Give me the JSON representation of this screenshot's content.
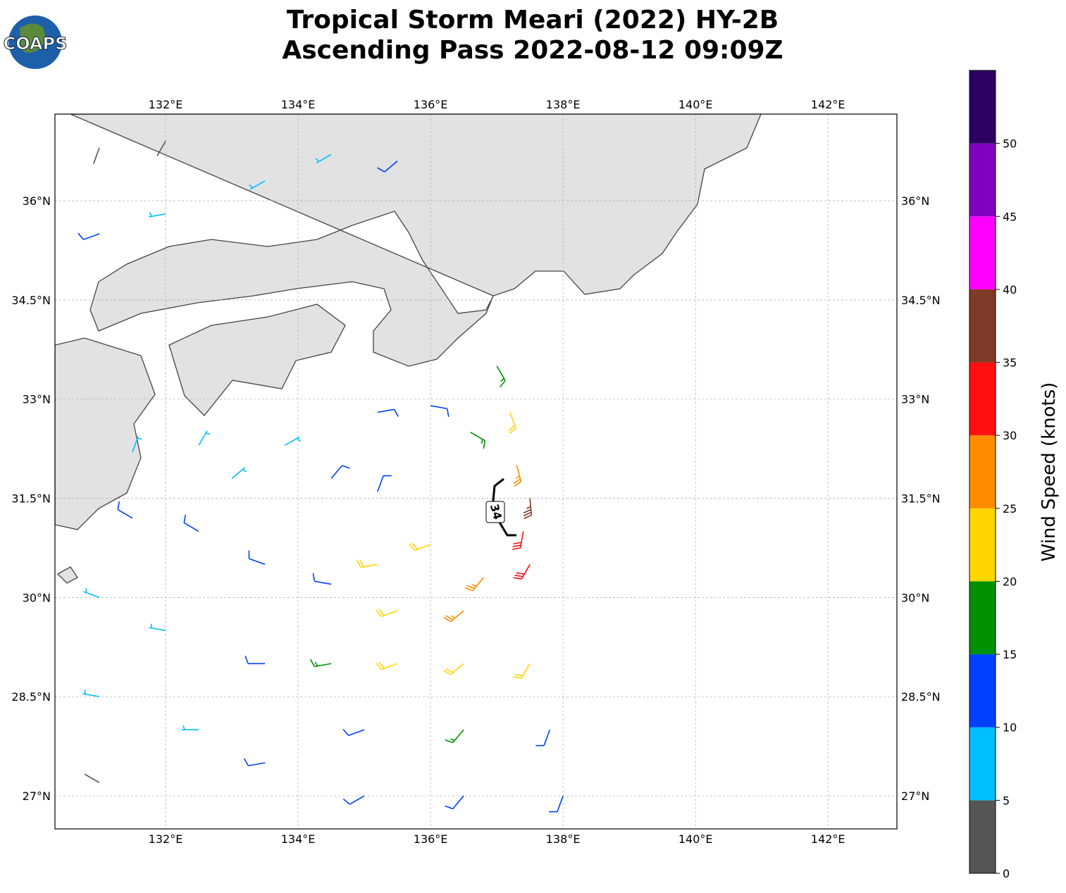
{
  "title": [
    "Tropical Storm Meari (2022) HY-2B",
    "Ascending Pass 2022-08-12 09:09Z"
  ],
  "logo": "COAPS",
  "map": {
    "xlim": [
      130.33,
      143.04
    ],
    "ylim": [
      26.5,
      37.31
    ],
    "xticks": [
      {
        "value": 132,
        "label": "132°E"
      },
      {
        "value": 134,
        "label": "134°E"
      },
      {
        "value": 136,
        "label": "136°E"
      },
      {
        "value": 138,
        "label": "138°E"
      },
      {
        "value": 140,
        "label": "140°E"
      },
      {
        "value": 142,
        "label": "142°E"
      }
    ],
    "yticks": [
      {
        "value": 27,
        "label": "27°N"
      },
      {
        "value": 28.5,
        "label": "28.5°N"
      },
      {
        "value": 30,
        "label": "30°N"
      },
      {
        "value": 31.5,
        "label": "31.5°N"
      },
      {
        "value": 33,
        "label": "33°N"
      },
      {
        "value": 34.5,
        "label": "34.5°N"
      },
      {
        "value": 36,
        "label": "36°N"
      }
    ],
    "grid": true,
    "contour_label": "34",
    "barbs": {
      "lon": [
        137.5,
        137.4,
        137.3,
        137.2,
        137.0,
        136.0,
        135.2,
        136.6,
        135.2,
        134.5,
        133.8,
        133.0,
        136.0,
        135.2,
        136.8,
        137.5,
        136.5,
        135.5,
        134.5,
        133.5,
        132.5,
        131.5,
        131.0,
        132.0,
        133.5,
        134.5,
        135.5,
        136.5,
        137.5,
        137.8,
        136.5,
        135.0,
        133.5,
        132.5,
        131.0,
        135.0,
        136.5,
        138.0,
        131.0,
        131.0,
        132.0,
        133.5,
        134.5,
        135.5,
        131.0,
        132.0,
        131.5,
        132.5
      ],
      "lat": [
        31.5,
        31.0,
        32.0,
        32.8,
        33.5,
        32.9,
        32.8,
        32.5,
        31.6,
        31.8,
        32.3,
        31.8,
        30.8,
        30.5,
        30.3,
        30.5,
        29.8,
        29.8,
        30.2,
        30.5,
        31.0,
        31.2,
        30.0,
        29.5,
        29.0,
        29.0,
        29.0,
        29.0,
        29.0,
        28.0,
        28.0,
        28.0,
        27.5,
        28.0,
        28.5,
        27.0,
        27.0,
        27.0,
        27.2,
        35.5,
        35.8,
        36.3,
        36.7,
        36.6,
        36.8,
        36.9,
        32.2,
        32.3
      ],
      "speed": [
        37,
        33,
        28,
        22,
        18,
        12,
        10,
        17,
        12,
        10,
        8,
        7,
        22,
        20,
        27,
        30,
        26,
        22,
        14,
        11,
        12,
        10,
        7,
        8,
        12,
        15,
        20,
        22,
        20,
        14,
        17,
        13,
        12,
        8,
        8,
        12,
        12,
        10,
        4,
        12,
        8,
        9,
        8,
        12,
        3,
        4,
        8,
        8
      ],
      "direction": [
        175,
        190,
        165,
        160,
        150,
        100,
        80,
        120,
        20,
        40,
        60,
        50,
        250,
        260,
        220,
        210,
        230,
        250,
        280,
        290,
        300,
        300,
        290,
        280,
        270,
        260,
        250,
        230,
        210,
        200,
        220,
        250,
        260,
        270,
        280,
        240,
        220,
        200,
        300,
        250,
        260,
        240,
        240,
        230,
        200,
        210,
        20,
        30
      ]
    }
  },
  "colorbar": {
    "label": "Wind Speed (knots)",
    "bounds": [
      0,
      5,
      10,
      15,
      20,
      25,
      30,
      35,
      40,
      45,
      50,
      55
    ],
    "colors": [
      "#555555",
      "#00bfff",
      "#0040ff",
      "#009000",
      "#ffd700",
      "#ff8c00",
      "#ff1010",
      "#7f3a28",
      "#ff00ff",
      "#8000c0",
      "#2b0060"
    ],
    "ticks": [
      0,
      5,
      10,
      15,
      20,
      25,
      30,
      35,
      40,
      45,
      50
    ]
  }
}
